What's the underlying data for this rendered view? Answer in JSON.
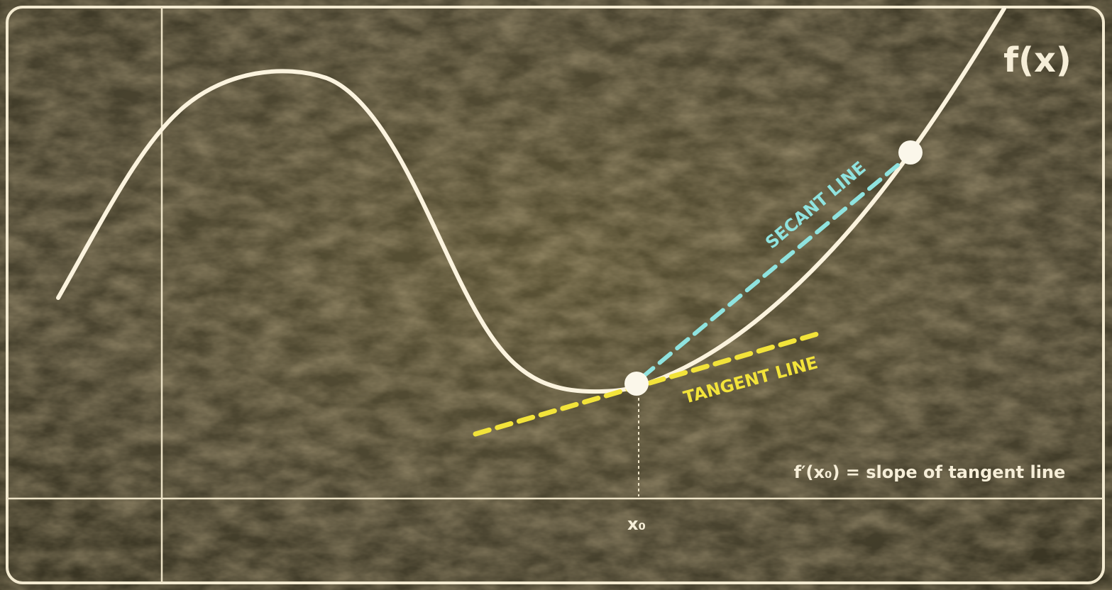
{
  "function_label": "f(x)",
  "secant_label": "SECANT LINE",
  "tangent_label": "TANGENT LINE",
  "point_label": "x₀",
  "derivative_note": "f′(x₀) = slope of tangent line"
}
